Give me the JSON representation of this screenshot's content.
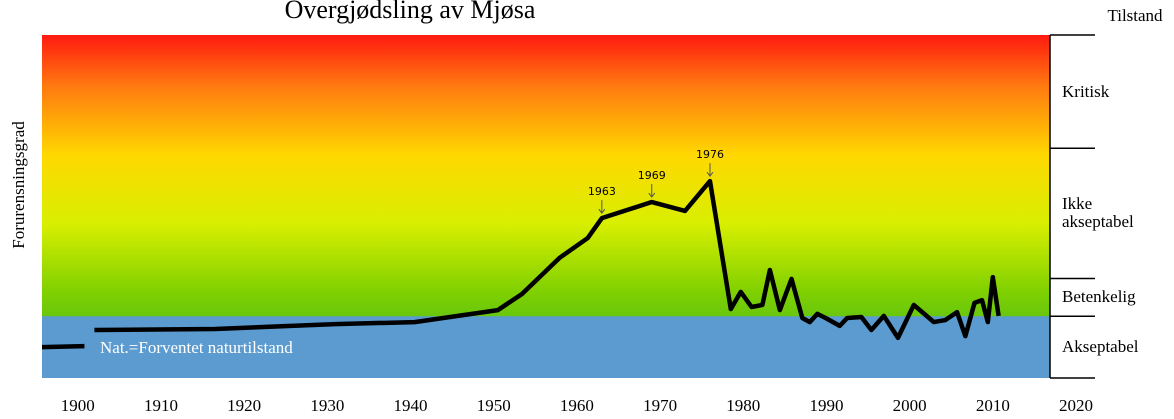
{
  "chart_data": {
    "type": "line",
    "title": "Overgjødsling av Mjøsa",
    "ylabel": "Forurensningsgrad",
    "zone_header": "Tilstand",
    "zones": [
      {
        "label": "Kritisk",
        "from": 100,
        "to": 67
      },
      {
        "label": "Ikke akseptabel",
        "from": 67,
        "to": 29
      },
      {
        "label": "Betenkelig",
        "from": 29,
        "to": 18
      },
      {
        "label": "Akseptabel",
        "from": 18,
        "to": 0
      }
    ],
    "natural_label": "Nat.=Forventet naturtilstand",
    "xlim": [
      1895.7,
      2020
    ],
    "ylim": [
      0,
      100
    ],
    "xticks": [
      1900,
      1910,
      1920,
      1930,
      1940,
      1950,
      1960,
      1970,
      1980,
      1990,
      2000,
      2010,
      2020
    ],
    "series": [
      {
        "color": "#000000",
        "x": [
          1895.7,
          1900.8,
          null,
          1902.0,
          1916.5,
          1930.9,
          1940.5,
          1950.5,
          1953.4,
          1957.9,
          1961.3,
          1963,
          1969,
          1973,
          1976,
          1978.5,
          1979.7,
          1981.0,
          1982.3,
          1983.2,
          1984.4,
          1985.8,
          1987.1,
          1988.0,
          1988.9,
          1989.9,
          1991.6,
          1992.5,
          1994.2,
          1995.4,
          1996.9,
          1998.6,
          2000.5,
          2001.9,
          2002.9,
          2004.3,
          2005.7,
          2006.7,
          2007.8,
          2008.7,
          2009.4,
          2010.0,
          2010.7
        ],
        "values": [
          9.0,
          9.3,
          null,
          14.0,
          14.3,
          15.7,
          16.3,
          19.8,
          24.5,
          35.0,
          40.8,
          46.6,
          51.3,
          48.7,
          57.4,
          20.1,
          25.1,
          20.7,
          21.3,
          31.5,
          19.8,
          28.9,
          17.5,
          16.3,
          18.7,
          17.5,
          15.2,
          17.5,
          17.8,
          14.0,
          18.1,
          11.7,
          21.3,
          18.4,
          16.3,
          16.9,
          19.2,
          12.2,
          21.9,
          22.7,
          16.3,
          29.4,
          18.1
        ]
      }
    ],
    "annotations": [
      {
        "text": "1963",
        "x": 1963
      },
      {
        "text": "1969",
        "x": 1969
      },
      {
        "text": "1976",
        "x": 1976
      }
    ]
  }
}
